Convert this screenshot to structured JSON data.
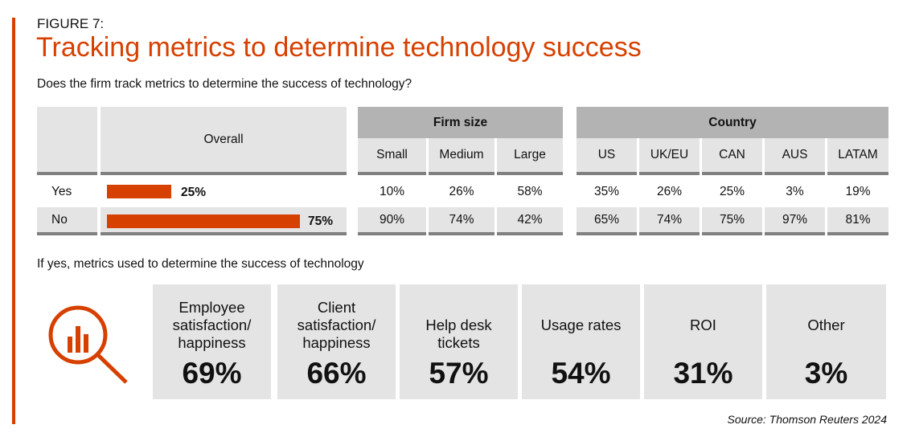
{
  "figure_label": "FIGURE 7:",
  "title": "Tracking metrics to determine technology success",
  "question": "Does the firm track metrics to determine the success of technology?",
  "colors": {
    "accent": "#d64000",
    "header_dark": "#b3b3b3",
    "header_light": "#e4e4e4"
  },
  "chart_data": {
    "type": "table",
    "groups": [
      "Firm size",
      "Country"
    ],
    "overall_label": "Overall",
    "columns": [
      "Small",
      "Medium",
      "Large",
      "US",
      "UK/EU",
      "CAN",
      "AUS",
      "LATAM"
    ],
    "rows": [
      {
        "label": "Yes",
        "overall": "25%",
        "overall_value": 25,
        "values": [
          "10%",
          "26%",
          "58%",
          "35%",
          "26%",
          "25%",
          "3%",
          "19%"
        ]
      },
      {
        "label": "No",
        "overall": "75%",
        "overall_value": 75,
        "values": [
          "90%",
          "74%",
          "42%",
          "65%",
          "74%",
          "75%",
          "97%",
          "81%"
        ]
      }
    ],
    "metrics_title": "If yes, metrics used to determine the success of technology",
    "metrics": [
      {
        "label": [
          "Employee",
          "satisfaction/",
          "happiness"
        ],
        "value": "69%"
      },
      {
        "label": [
          "Client",
          "satisfaction/",
          "happiness"
        ],
        "value": "66%"
      },
      {
        "label": [
          "Help desk",
          "tickets"
        ],
        "value": "57%"
      },
      {
        "label": [
          "Usage rates"
        ],
        "value": "54%"
      },
      {
        "label": [
          "ROI"
        ],
        "value": "31%"
      },
      {
        "label": [
          "Other"
        ],
        "value": "3%"
      }
    ]
  },
  "source": "Source: Thomson Reuters 2024"
}
